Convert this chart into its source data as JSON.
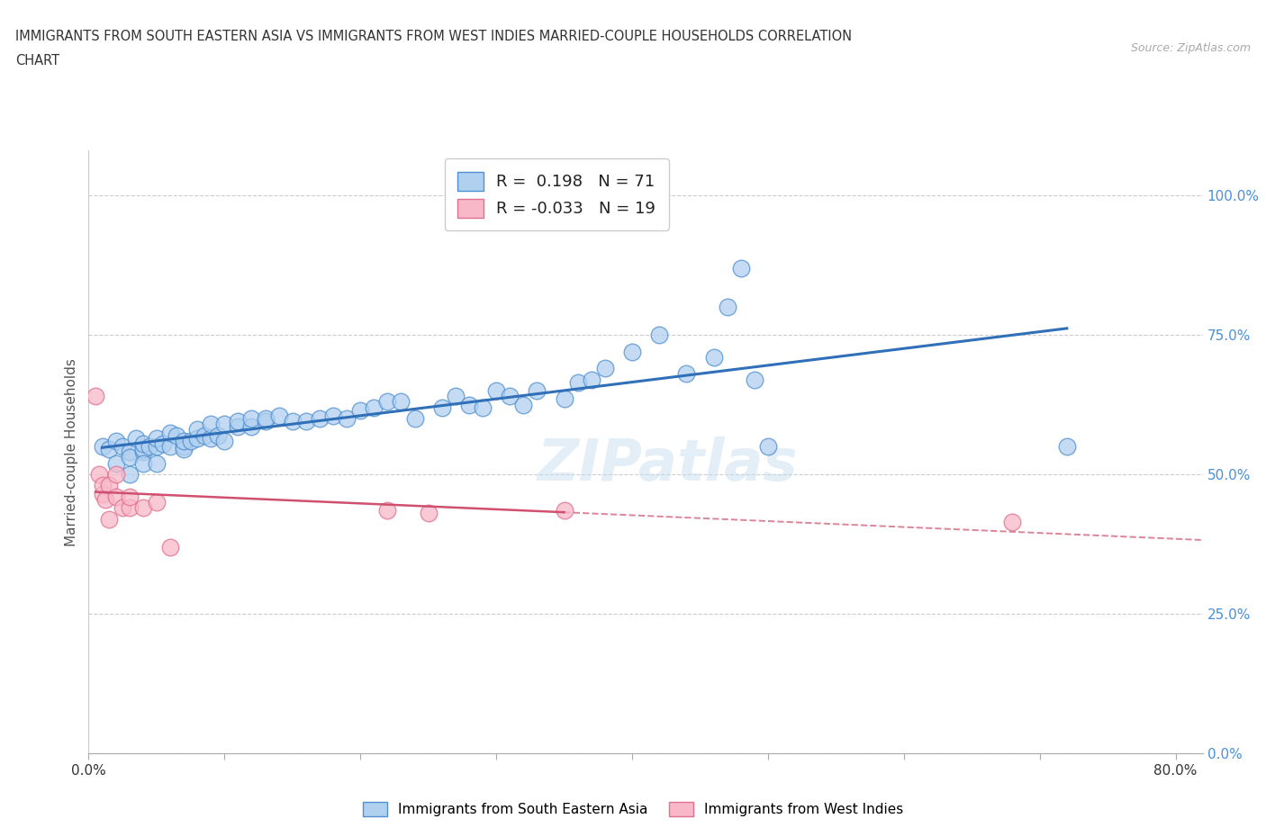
{
  "title_line1": "IMMIGRANTS FROM SOUTH EASTERN ASIA VS IMMIGRANTS FROM WEST INDIES MARRIED-COUPLE HOUSEHOLDS CORRELATION",
  "title_line2": "CHART",
  "source": "Source: ZipAtlas.com",
  "ylabel": "Married-couple Households",
  "xlim": [
    0.0,
    0.82
  ],
  "ylim": [
    0.0,
    1.08
  ],
  "yticks": [
    0.0,
    0.25,
    0.5,
    0.75,
    1.0
  ],
  "ytick_labels": [
    "0.0%",
    "25.0%",
    "50.0%",
    "75.0%",
    "100.0%"
  ],
  "xtick_vals": [
    0.0,
    0.1,
    0.2,
    0.3,
    0.4,
    0.5,
    0.6,
    0.7,
    0.8
  ],
  "xtick_labels": [
    "0.0%",
    "",
    "",
    "",
    "",
    "",
    "",
    "",
    "80.0%"
  ],
  "blue_R": 0.198,
  "blue_N": 71,
  "pink_R": -0.033,
  "pink_N": 19,
  "blue_dot_color": "#b0d0f0",
  "blue_edge_color": "#5090d0",
  "blue_line_color": "#3070b8",
  "pink_dot_color": "#f8b8c8",
  "pink_edge_color": "#e07090",
  "pink_line_color": "#d05070",
  "legend_label_blue": "Immigrants from South Eastern Asia",
  "legend_label_pink": "Immigrants from West Indies",
  "watermark": "ZIPatlas",
  "blue_x": [
    0.01,
    0.015,
    0.02,
    0.02,
    0.025,
    0.03,
    0.03,
    0.03,
    0.035,
    0.04,
    0.04,
    0.04,
    0.04,
    0.045,
    0.05,
    0.05,
    0.05,
    0.055,
    0.06,
    0.06,
    0.065,
    0.07,
    0.07,
    0.07,
    0.075,
    0.08,
    0.08,
    0.085,
    0.09,
    0.09,
    0.095,
    0.1,
    0.1,
    0.11,
    0.11,
    0.12,
    0.12,
    0.13,
    0.13,
    0.14,
    0.15,
    0.16,
    0.17,
    0.18,
    0.19,
    0.2,
    0.21,
    0.22,
    0.23,
    0.24,
    0.26,
    0.27,
    0.28,
    0.29,
    0.3,
    0.31,
    0.32,
    0.33,
    0.35,
    0.36,
    0.37,
    0.38,
    0.4,
    0.42,
    0.44,
    0.46,
    0.47,
    0.48,
    0.49,
    0.5,
    0.72
  ],
  "blue_y": [
    0.55,
    0.545,
    0.52,
    0.56,
    0.55,
    0.54,
    0.5,
    0.53,
    0.565,
    0.54,
    0.545,
    0.52,
    0.555,
    0.55,
    0.55,
    0.52,
    0.565,
    0.555,
    0.55,
    0.575,
    0.57,
    0.55,
    0.545,
    0.56,
    0.56,
    0.565,
    0.58,
    0.57,
    0.565,
    0.59,
    0.57,
    0.56,
    0.59,
    0.585,
    0.595,
    0.585,
    0.6,
    0.595,
    0.6,
    0.605,
    0.595,
    0.595,
    0.6,
    0.605,
    0.6,
    0.615,
    0.62,
    0.63,
    0.63,
    0.6,
    0.62,
    0.64,
    0.625,
    0.62,
    0.65,
    0.64,
    0.625,
    0.65,
    0.635,
    0.665,
    0.67,
    0.69,
    0.72,
    0.75,
    0.68,
    0.71,
    0.8,
    0.87,
    0.67,
    0.55,
    0.55
  ],
  "pink_x": [
    0.005,
    0.008,
    0.01,
    0.01,
    0.012,
    0.015,
    0.015,
    0.02,
    0.02,
    0.025,
    0.03,
    0.03,
    0.04,
    0.05,
    0.06,
    0.22,
    0.25,
    0.35,
    0.68
  ],
  "pink_y": [
    0.64,
    0.5,
    0.465,
    0.48,
    0.455,
    0.48,
    0.42,
    0.46,
    0.5,
    0.44,
    0.44,
    0.46,
    0.44,
    0.45,
    0.37,
    0.435,
    0.43,
    0.435,
    0.415
  ]
}
